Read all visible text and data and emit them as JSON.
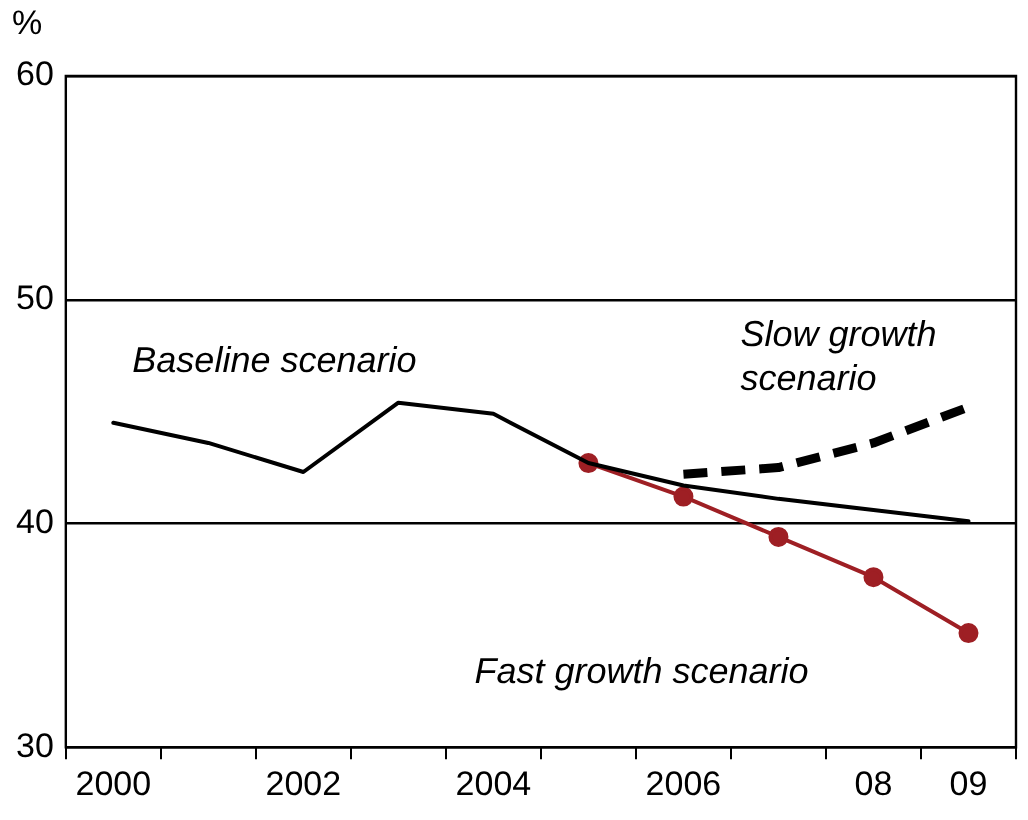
{
  "chart_data": {
    "type": "line",
    "ylabel": "%",
    "categories": [
      "2000",
      null,
      "2002",
      null,
      "2004",
      null,
      "2006",
      null,
      "08",
      "09"
    ],
    "series": [
      {
        "name": "Baseline scenario",
        "color": "#000000",
        "marker": "none",
        "line_style": "solid",
        "values": [
          44.5,
          43.6,
          42.3,
          45.4,
          44.9,
          42.7,
          41.7,
          41.1,
          40.6,
          40.1
        ]
      },
      {
        "name": "Slow growth scenario",
        "color": "#000000",
        "marker": "none",
        "line_style": "dashed",
        "values": [
          null,
          null,
          null,
          null,
          null,
          null,
          42.2,
          42.5,
          43.6,
          45.2
        ]
      },
      {
        "name": "Fast growth scenario",
        "color": "#9e1f24",
        "marker": "circle",
        "line_style": "solid",
        "values": [
          null,
          null,
          null,
          null,
          null,
          42.7,
          41.2,
          39.4,
          37.6,
          35.1
        ]
      }
    ],
    "ylim": [
      30,
      60
    ],
    "yticks": [
      30,
      40,
      50,
      60
    ],
    "grid": "y",
    "legend": false
  }
}
